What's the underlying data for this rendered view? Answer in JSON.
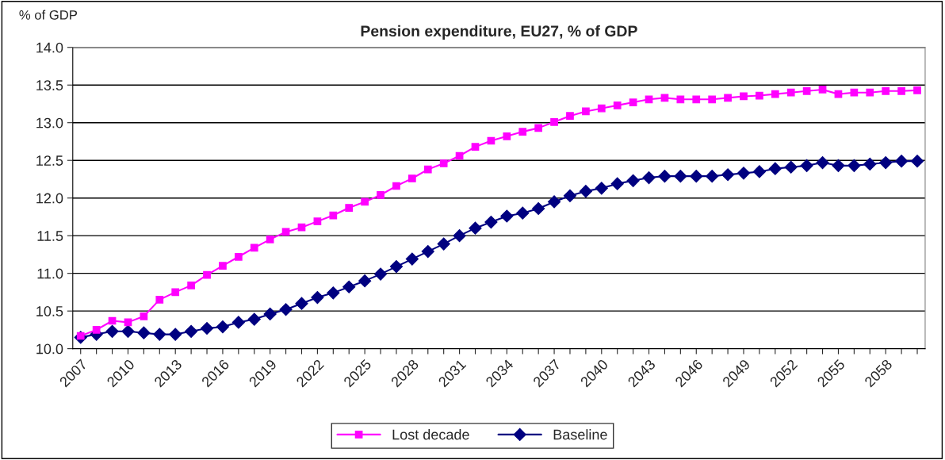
{
  "chart_data": {
    "type": "line",
    "title": "Pension expenditure, EU27, % of GDP",
    "ylabel": "% of GDP",
    "categories": [
      "2007",
      null,
      null,
      "2010",
      null,
      null,
      "2013",
      null,
      null,
      "2016",
      null,
      null,
      "2019",
      null,
      null,
      "2022",
      null,
      null,
      "2025",
      null,
      null,
      "2028",
      null,
      null,
      "2031",
      null,
      null,
      "2034",
      null,
      null,
      "2037",
      null,
      null,
      "2040",
      null,
      null,
      "2043",
      null,
      null,
      "2046",
      null,
      null,
      "2049",
      null,
      null,
      "2052",
      null,
      null,
      "2055",
      null,
      null,
      "2058",
      null,
      null
    ],
    "series": [
      {
        "name": "Lost decade",
        "color": "#ff00ff",
        "marker": "square",
        "values": [
          10.17,
          10.25,
          10.37,
          10.35,
          10.43,
          10.65,
          10.75,
          10.84,
          10.98,
          11.1,
          11.22,
          11.34,
          11.45,
          11.55,
          11.61,
          11.69,
          11.77,
          11.87,
          11.95,
          12.04,
          12.16,
          12.26,
          12.38,
          12.46,
          12.56,
          12.68,
          12.76,
          12.82,
          12.88,
          12.93,
          13.01,
          13.09,
          13.15,
          13.19,
          13.23,
          13.27,
          13.31,
          13.33,
          13.31,
          13.31,
          13.31,
          13.33,
          13.35,
          13.36,
          13.38,
          13.4,
          13.42,
          13.44,
          13.38,
          13.4,
          13.4,
          13.42,
          13.42,
          13.43
        ]
      },
      {
        "name": "Baseline",
        "color": "#000080",
        "marker": "diamond",
        "values": [
          10.15,
          10.19,
          10.23,
          10.23,
          10.21,
          10.19,
          10.19,
          10.23,
          10.27,
          10.29,
          10.35,
          10.39,
          10.46,
          10.52,
          10.6,
          10.68,
          10.74,
          10.82,
          10.9,
          10.99,
          11.09,
          11.19,
          11.29,
          11.39,
          11.5,
          11.6,
          11.68,
          11.76,
          11.8,
          11.86,
          11.95,
          12.03,
          12.09,
          12.13,
          12.19,
          12.23,
          12.27,
          12.29,
          12.29,
          12.29,
          12.29,
          12.31,
          12.33,
          12.35,
          12.39,
          12.41,
          12.43,
          12.47,
          12.43,
          12.43,
          12.45,
          12.47,
          12.49,
          12.49
        ]
      }
    ],
    "ylim": [
      10.0,
      14.0
    ],
    "yticks": [
      {
        "value": 10.0,
        "label": "10.0"
      },
      {
        "value": 10.5,
        "label": "10.5"
      },
      {
        "value": 11.0,
        "label": "11.0"
      },
      {
        "value": 11.5,
        "label": "11.5"
      },
      {
        "value": 12.0,
        "label": "12.0"
      },
      {
        "value": 12.5,
        "label": "12.5"
      },
      {
        "value": 13.0,
        "label": "13.0"
      },
      {
        "value": 13.5,
        "label": "13.5"
      },
      {
        "value": 14.0,
        "label": "14.0"
      }
    ],
    "grid": "y",
    "legend": "bottom",
    "line_style": "solid"
  }
}
